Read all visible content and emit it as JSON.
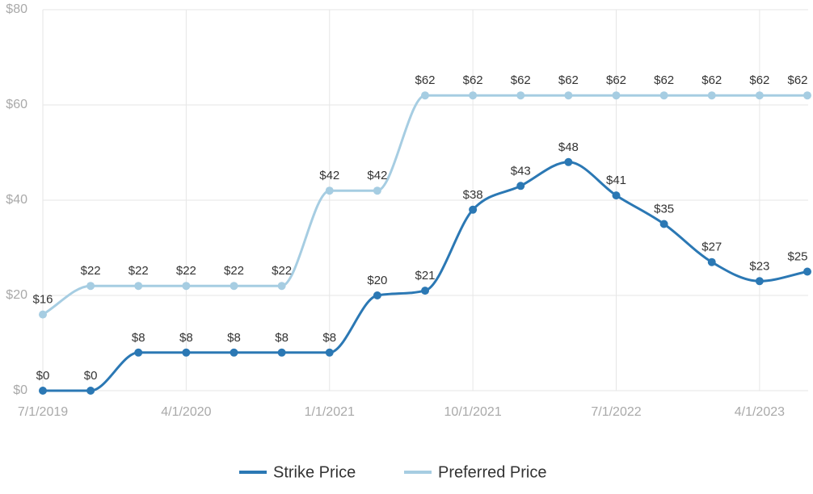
{
  "chart_data": {
    "type": "line",
    "categories": [
      "7/1/2019",
      null,
      null,
      "4/1/2020",
      null,
      null,
      "1/1/2021",
      null,
      null,
      "10/1/2021",
      null,
      null,
      "7/1/2022",
      null,
      null,
      "4/1/2023",
      null
    ],
    "series": [
      {
        "name": "Strike Price",
        "color": "#2b78b4",
        "values": [
          0,
          0,
          8,
          8,
          8,
          8,
          8,
          20,
          21,
          38,
          43,
          48,
          41,
          35,
          27,
          23,
          25
        ],
        "value_labels": [
          "$0",
          "$0",
          "$8",
          "$8",
          "$8",
          "$8",
          "$8",
          "$20",
          "$21",
          "$38",
          "$43",
          "$48",
          "$41",
          "$35",
          "$27",
          "$23",
          "$25"
        ]
      },
      {
        "name": "Preferred Price",
        "color": "#a6cde2",
        "values": [
          16,
          22,
          22,
          22,
          22,
          22,
          42,
          42,
          62,
          62,
          62,
          62,
          62,
          62,
          62,
          62,
          62
        ],
        "value_labels": [
          "$16",
          "$22",
          "$22",
          "$22",
          "$22",
          "$22",
          "$42",
          "$42",
          "$62",
          "$62",
          "$62",
          "$62",
          "$62",
          "$62",
          "$62",
          "$62",
          "$62"
        ]
      }
    ],
    "ylim": [
      0,
      80
    ],
    "yticks": [
      {
        "value": 0,
        "label": "$0"
      },
      {
        "value": 20,
        "label": "$20"
      },
      {
        "value": 40,
        "label": "$40"
      },
      {
        "value": 60,
        "label": "$60"
      },
      {
        "value": 80,
        "label": "$80"
      }
    ],
    "grid": true
  }
}
